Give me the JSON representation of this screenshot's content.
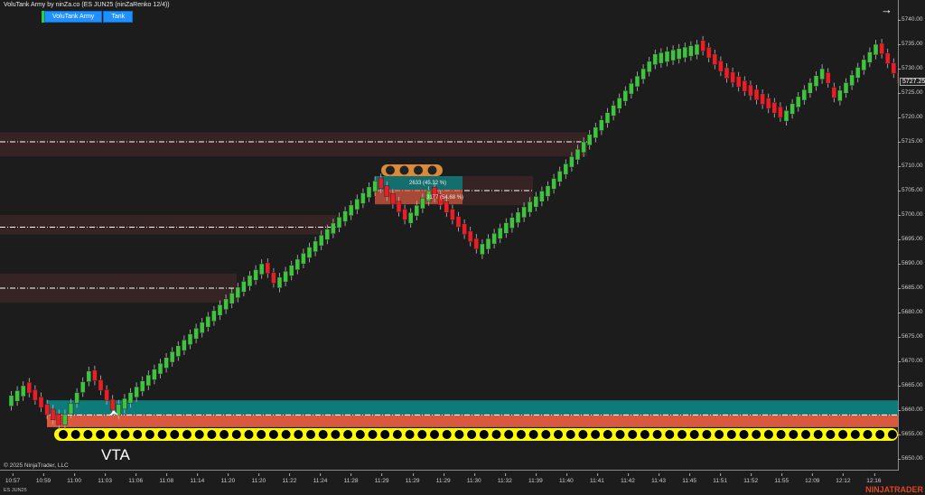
{
  "window": {
    "title": "VoluTank Army by ninZa.co (ES JUN25 (ninZaRenko 12/4))",
    "nav_arrow_icon": "arrow-right-icon"
  },
  "toolbar": {
    "buttons": [
      "VoluTank Army",
      "Tank"
    ]
  },
  "footer": {
    "copyright": "© 2025 NinjaTrader, LLC",
    "instrument": "ES JUN25",
    "brand": "NINJATRADER"
  },
  "annotations": {
    "vta": "VTA",
    "buy_volume": "2633 (45.32 %)",
    "sell_volume": "3177 (54.68 %)"
  },
  "colors": {
    "up": "#3ec43e",
    "down": "#ee1c24",
    "zone": "#3a2526",
    "teal": "#0e7b7b",
    "orange": "#d9583e",
    "yellow": "#ffff00",
    "brand": "#e0451f"
  },
  "chart_data": {
    "type": "candlestick",
    "price_axis": {
      "ticks": [
        5740,
        5735,
        5730,
        5725,
        5720,
        5715,
        5710,
        5705,
        5700,
        5695,
        5690,
        5685,
        5680,
        5675,
        5670,
        5665,
        5660,
        5655,
        5650
      ],
      "last_price": "5727.25"
    },
    "time_axis": {
      "ticks": [
        "10:57",
        "10:59",
        "11:00",
        "11:03",
        "11:06",
        "11:08",
        "11:14",
        "11:20",
        "11:20",
        "11:22",
        "11:24",
        "11:28",
        "11:29",
        "11:29",
        "11:29",
        "11:30",
        "11:32",
        "11:39",
        "11:40",
        "11:41",
        "11:42",
        "11:43",
        "11:45",
        "11:51",
        "11:52",
        "11:55",
        "12:09",
        "12:12",
        "12:16"
      ]
    },
    "price_path": [
      [
        0,
        5663
      ],
      [
        2,
        5665
      ],
      [
        6,
        5659
      ],
      [
        8,
        5657
      ],
      [
        13,
        5668
      ],
      [
        17,
        5660
      ],
      [
        42,
        5690
      ],
      [
        44,
        5686
      ],
      [
        61,
        5707
      ],
      [
        66,
        5699
      ],
      [
        70,
        5705
      ],
      [
        78,
        5693
      ],
      [
        90,
        5706
      ],
      [
        108,
        5733
      ],
      [
        115,
        5735
      ],
      [
        120,
        5728
      ],
      [
        129,
        5720
      ],
      [
        136,
        5730
      ],
      [
        138,
        5724
      ],
      [
        145,
        5735
      ],
      [
        149,
        5727
      ]
    ],
    "zones": [
      {
        "top": 5717,
        "bottom": 5712,
        "level": 5715
      },
      {
        "top": 5700,
        "bottom": 5696,
        "level": 5697.5
      },
      {
        "top": 5688,
        "bottom": 5682,
        "level": 5685
      },
      {
        "top": 5708,
        "bottom": 5702,
        "level": 5705
      }
    ],
    "volume_tank": {
      "teal_top": 5662,
      "level": 5659,
      "orange_bottom": 5656.5
    }
  }
}
